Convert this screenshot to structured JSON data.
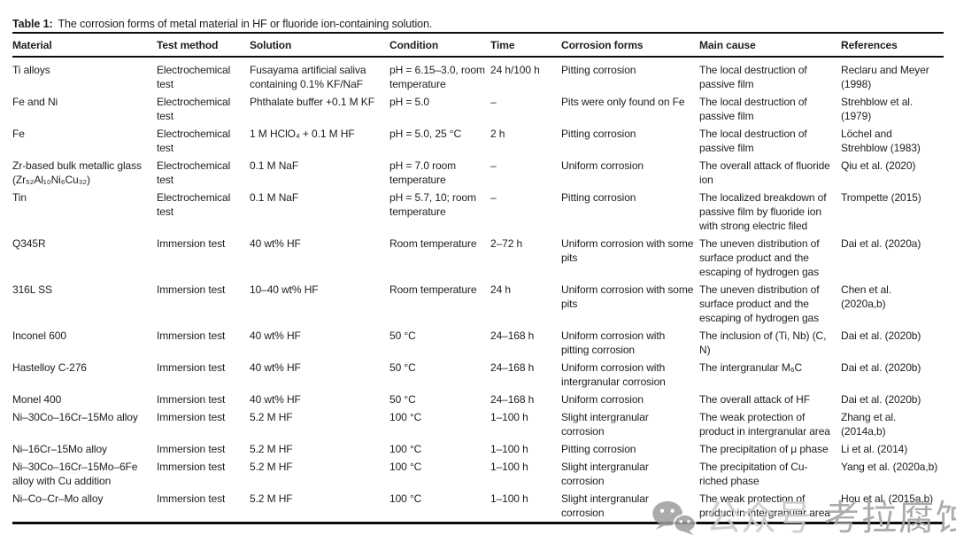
{
  "caption": {
    "label": "Table 1:",
    "text": "The corrosion forms of metal material in HF or fluoride ion-containing solution."
  },
  "table": {
    "columns": [
      {
        "key": "material",
        "label": "Material"
      },
      {
        "key": "test_method",
        "label": "Test method"
      },
      {
        "key": "solution",
        "label": "Solution"
      },
      {
        "key": "condition",
        "label": "Condition"
      },
      {
        "key": "time",
        "label": "Time"
      },
      {
        "key": "corrosion_forms",
        "label": "Corrosion forms"
      },
      {
        "key": "main_cause",
        "label": "Main cause"
      },
      {
        "key": "references",
        "label": "References"
      }
    ],
    "rows": [
      {
        "material": "Ti alloys",
        "test_method": "Electrochemical test",
        "solution": "Fusayama artificial saliva containing 0.1% KF/NaF",
        "condition": "pH = 6.15–3.0, room temperature",
        "time": "24 h/100 h",
        "corrosion_forms": "Pitting corrosion",
        "main_cause": "The local destruction of passive film",
        "references": "Reclaru and Meyer (1998)"
      },
      {
        "material": "Fe and Ni",
        "test_method": "Electrochemical test",
        "solution": "Phthalate buffer +0.1 M KF",
        "condition": "pH = 5.0",
        "time": "–",
        "corrosion_forms": "Pits were only found on Fe",
        "main_cause": "The local destruction of passive film",
        "references": "Strehblow et al. (1979)"
      },
      {
        "material": "Fe",
        "test_method": "Electrochemical test",
        "solution": "1 M HClO₄ + 0.1 M HF",
        "condition": "pH = 5.0, 25 °C",
        "time": "2 h",
        "corrosion_forms": "Pitting corrosion",
        "main_cause": "The local destruction of passive film",
        "references": "Löchel and Strehblow (1983)"
      },
      {
        "material": "Zr-based bulk metallic glass (Zr₅₂Al₁₀Ni₆Cu₃₂)",
        "test_method": "Electrochemical test",
        "solution": "0.1 M NaF",
        "condition": "pH = 7.0 room temperature",
        "time": "–",
        "corrosion_forms": "Uniform corrosion",
        "main_cause": "The overall attack of fluoride ion",
        "references": "Qiu et al. (2020)"
      },
      {
        "material": "Tin",
        "test_method": "Electrochemical test",
        "solution": "0.1 M NaF",
        "condition": "pH = 5.7, 10; room temperature",
        "time": "–",
        "corrosion_forms": "Pitting corrosion",
        "main_cause": "The localized breakdown of passive film by fluoride ion with strong electric filed",
        "references": "Trompette (2015)"
      },
      {
        "material": "Q345R",
        "test_method": "Immersion test",
        "solution": "40 wt% HF",
        "condition": "Room temperature",
        "time": "2–72 h",
        "corrosion_forms": "Uniform corrosion with some pits",
        "main_cause": "The uneven distribution of surface product and the escaping of hydrogen gas",
        "references": "Dai et al. (2020a)"
      },
      {
        "material": "316L SS",
        "test_method": "Immersion test",
        "solution": "10–40 wt% HF",
        "condition": "Room temperature",
        "time": "24 h",
        "corrosion_forms": "Uniform corrosion with some pits",
        "main_cause": "The uneven distribution of surface product and the escaping of hydrogen gas",
        "references": "Chen et al. (2020a,b)"
      },
      {
        "material": "Inconel 600",
        "test_method": "Immersion test",
        "solution": "40 wt% HF",
        "condition": "50 °C",
        "time": "24–168 h",
        "corrosion_forms": "Uniform corrosion with pitting corrosion",
        "main_cause": "The inclusion of (Ti, Nb) (C, N)",
        "references": "Dai et al. (2020b)"
      },
      {
        "material": "Hastelloy C-276",
        "test_method": "Immersion test",
        "solution": "40 wt% HF",
        "condition": "50 °C",
        "time": "24–168 h",
        "corrosion_forms": "Uniform corrosion with intergranular corrosion",
        "main_cause": "The intergranular M₆C",
        "references": "Dai et al. (2020b)"
      },
      {
        "material": "Monel 400",
        "test_method": "Immersion test",
        "solution": "40 wt% HF",
        "condition": "50 °C",
        "time": "24–168 h",
        "corrosion_forms": "Uniform corrosion",
        "main_cause": "The overall attack of HF",
        "references": "Dai et al. (2020b)"
      },
      {
        "material": "Ni–30Co–16Cr–15Mo alloy",
        "test_method": "Immersion test",
        "solution": "5.2 M HF",
        "condition": "100 °C",
        "time": "1–100 h",
        "corrosion_forms": "Slight intergranular corrosion",
        "main_cause": "The weak protection of product in intergranular area",
        "references": "Zhang et al. (2014a,b)"
      },
      {
        "material": "Ni–16Cr–15Mo alloy",
        "test_method": "Immersion test",
        "solution": "5.2 M HF",
        "condition": "100 °C",
        "time": "1–100 h",
        "corrosion_forms": "Pitting corrosion",
        "main_cause": "The precipitation of μ phase",
        "references": "Li et al. (2014)"
      },
      {
        "material": "Ni–30Co–16Cr–15Mo–6Fe alloy with Cu addition",
        "test_method": "Immersion test",
        "solution": "5.2 M HF",
        "condition": "100 °C",
        "time": "1–100 h",
        "corrosion_forms": "Slight intergranular corrosion",
        "main_cause": "The precipitation of Cu-riched phase",
        "references": "Yang et al. (2020a,b)"
      },
      {
        "material": "Ni–Co–Cr–Mo alloy",
        "test_method": "Immersion test",
        "solution": "5.2 M HF",
        "condition": "100 °C",
        "time": "1–100 h",
        "corrosion_forms": "Slight intergranular corrosion",
        "main_cause": "The weak protection of product in intergranular area",
        "references": "Hou et al. (2015a,b)"
      }
    ]
  },
  "watermark": {
    "platform_icon": "wechat-icon",
    "account_label": "公众号",
    "account_name": "考拉腐蚀",
    "icon_color": "#9d9d9d"
  }
}
